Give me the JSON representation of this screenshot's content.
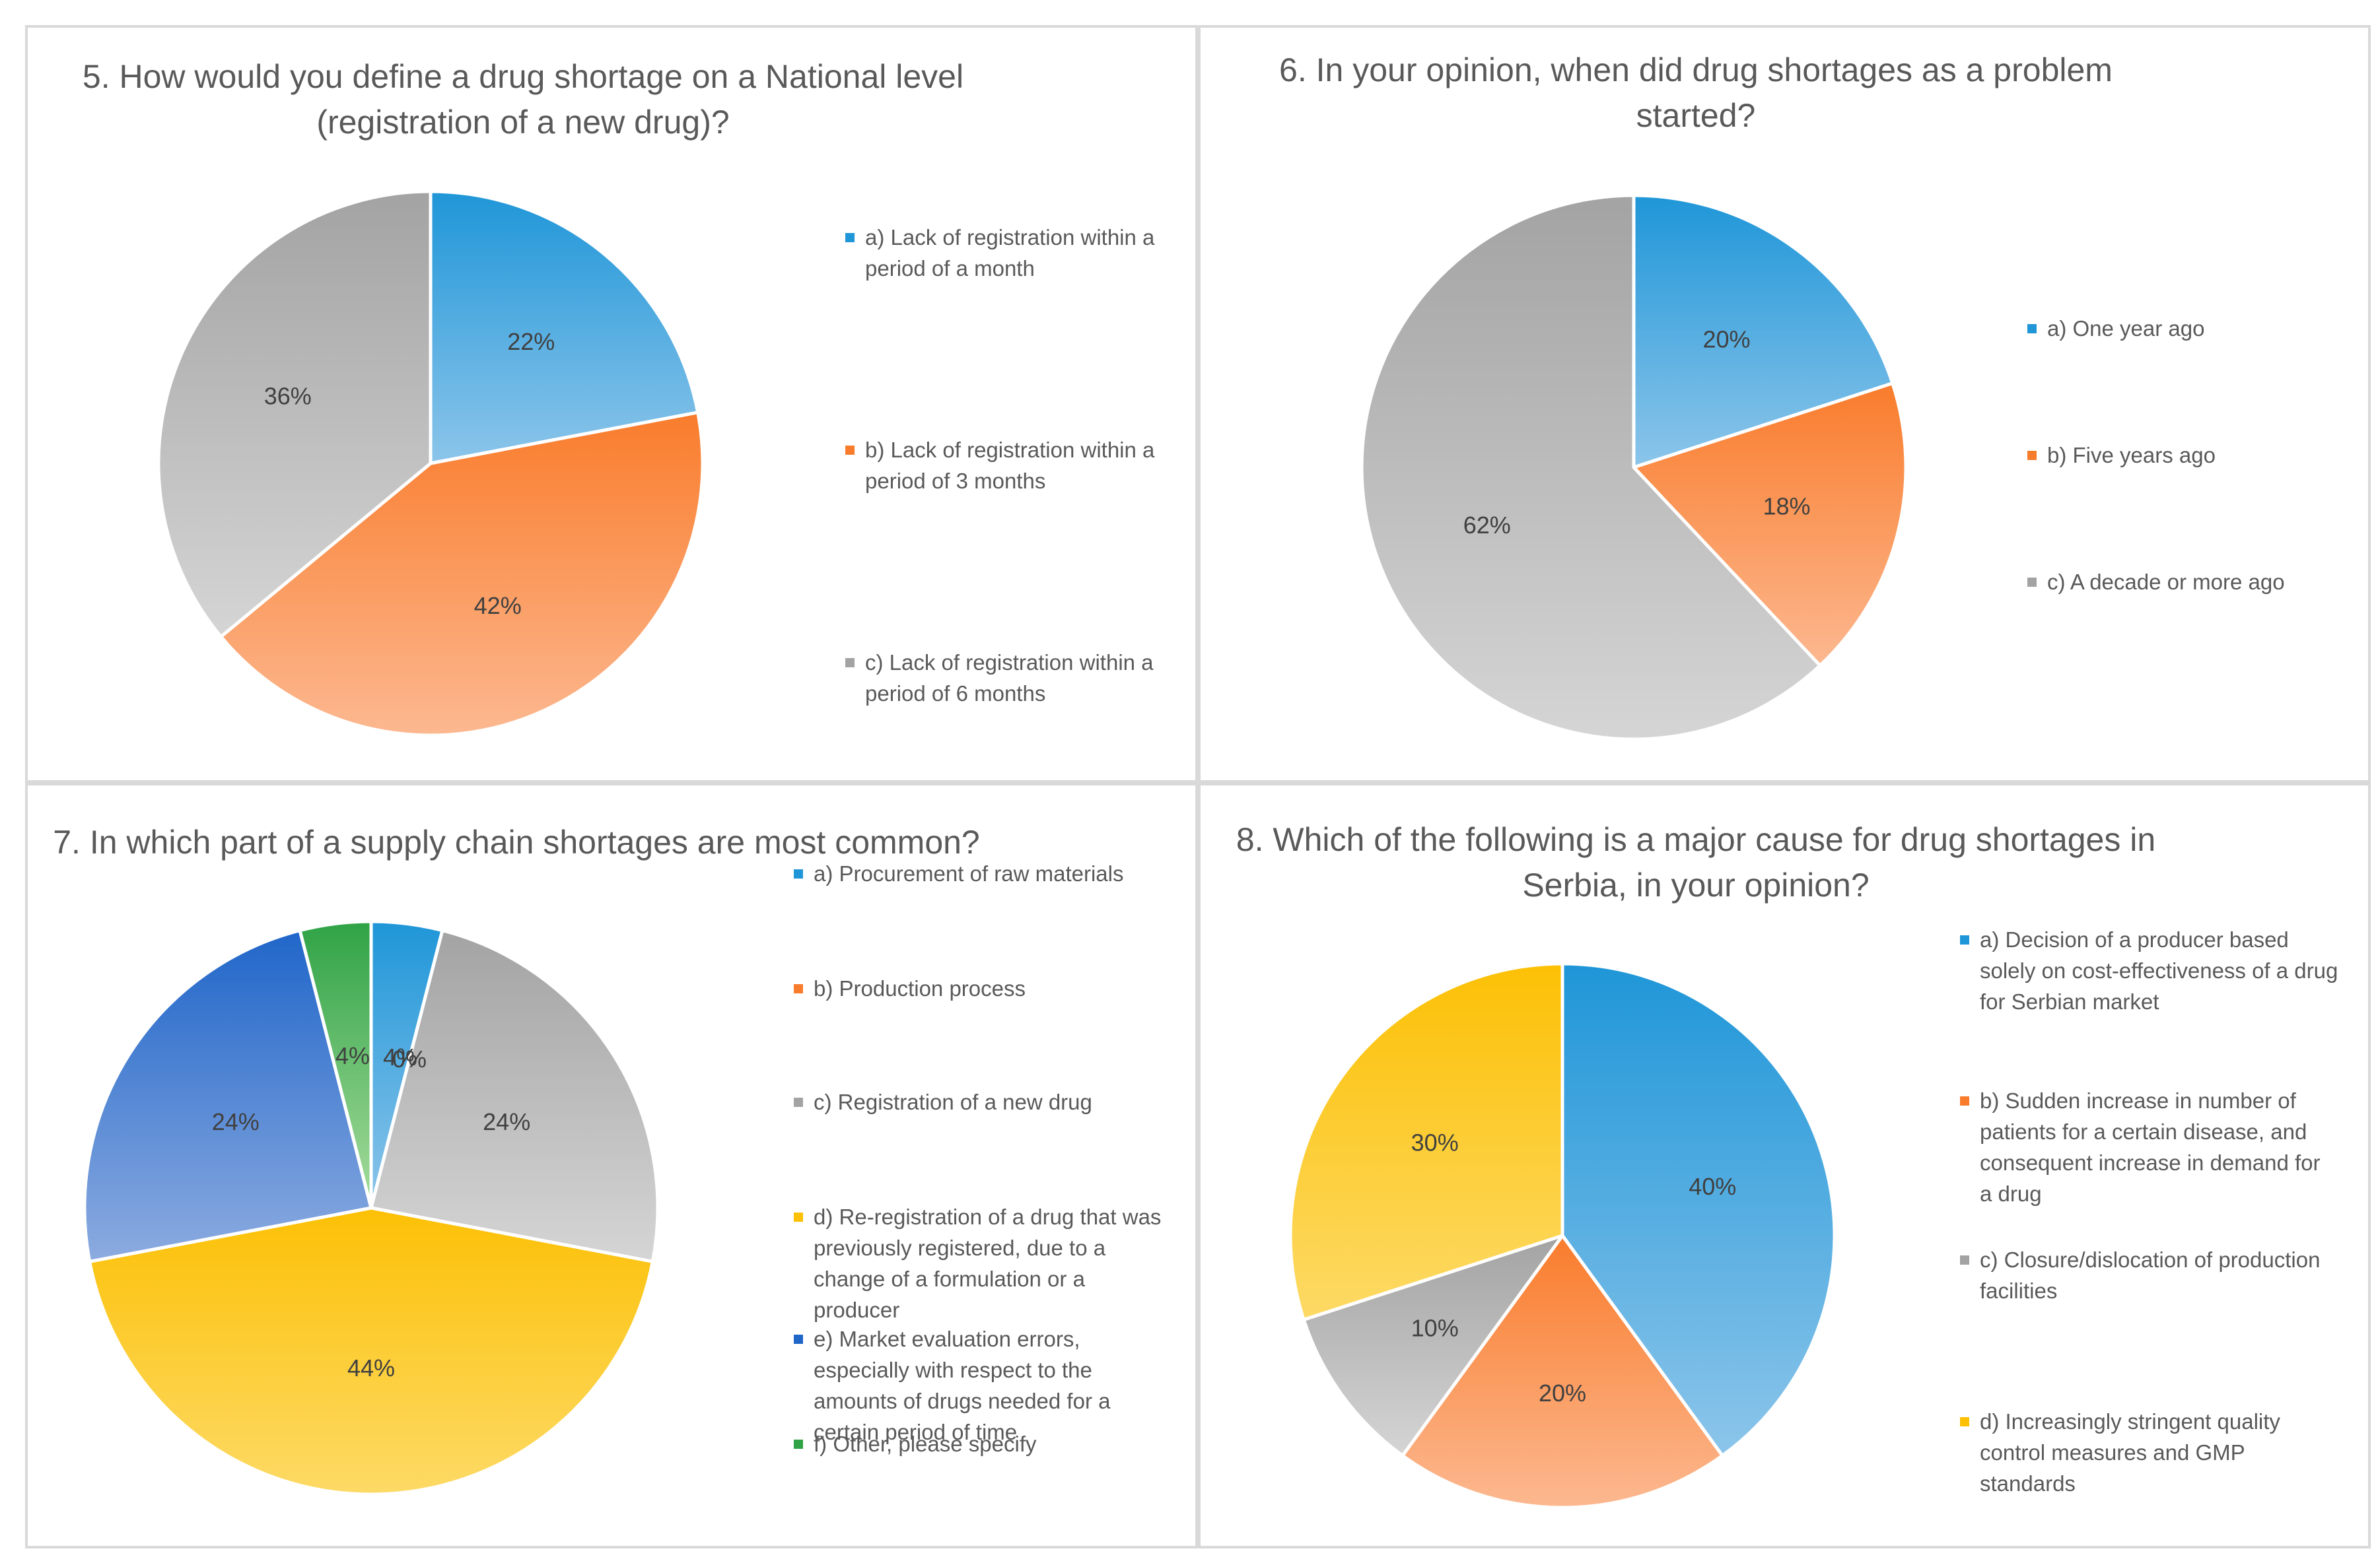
{
  "colors": {
    "blue": [
      "#1f96d8",
      "#8cc5ea"
    ],
    "orange": [
      "#f97c2c",
      "#fcb890"
    ],
    "gray": [
      "#a3a3a3",
      "#d5d5d5"
    ],
    "yellow": [
      "#fcc005",
      "#fdda66"
    ],
    "darkblue": [
      "#2066c9",
      "#8cabe0"
    ],
    "green": [
      "#30a346",
      "#a6dc9d"
    ]
  },
  "chart_data": [
    {
      "type": "pie",
      "title": "5. How would you define a drug shortage on a National level (registration of a new drug)?",
      "title_lines": [
        "5. How would you define a drug shortage on a National level",
        "(registration of a new drug)?"
      ],
      "categories": [
        "a) Lack of registration within a period of a month",
        "b) Lack of registration within a period of 3 months",
        "c) Lack of registration within a period of 6 months"
      ],
      "values": [
        22,
        42,
        36
      ],
      "labels": [
        "22%",
        "42%",
        "36%"
      ],
      "legend_lines": [
        [
          "a) Lack of registration within a",
          "period of a month"
        ],
        [
          "b) Lack of registration within a",
          "period of 3 months"
        ],
        [
          "c) Lack of registration within a",
          "period of 6 months"
        ]
      ],
      "colors": [
        "blue",
        "orange",
        "gray"
      ],
      "legend": "right"
    },
    {
      "type": "pie",
      "title": "6. In your opinion, when did drug shortages as a problem started?",
      "title_lines": [
        "6. In your opinion, when did drug shortages as a problem",
        "started?"
      ],
      "categories": [
        "a) One year ago",
        "b) Five years ago",
        "c) A decade or more ago"
      ],
      "values": [
        20,
        18,
        62
      ],
      "labels": [
        "20%",
        "18%",
        "62%"
      ],
      "legend_lines": [
        [
          "a) One year ago"
        ],
        [
          "b) Five years ago"
        ],
        [
          "c) A decade or more ago"
        ]
      ],
      "colors": [
        "blue",
        "orange",
        "gray"
      ],
      "legend": "right"
    },
    {
      "type": "pie",
      "title": "7. In which part of a supply chain shortages are most common?",
      "title_lines": [
        "7. In which part of a supply chain shortages are most common?"
      ],
      "categories": [
        "a) Procurement of raw materials",
        "b) Production process",
        "c) Registration of a new drug",
        "d) Re-registration of a drug that was previously registered, due to a change of a formulation or a producer",
        "e) Market evaluation errors, especially with respect to the amounts of drugs needed for a certain period of time",
        "f) Other, please specify"
      ],
      "values": [
        4,
        0,
        24,
        44,
        24,
        4
      ],
      "labels": [
        "4%",
        "0%",
        "24%",
        "44%",
        "24%",
        "4%"
      ],
      "legend_lines": [
        [
          "a) Procurement of raw materials"
        ],
        [
          "b) Production process"
        ],
        [
          "c) Registration of a new drug"
        ],
        [
          "d) Re-registration of a drug that was",
          "previously registered, due to a",
          "change of a formulation or a",
          "producer"
        ],
        [
          "e) Market evaluation errors,",
          "especially with respect to the",
          "amounts of drugs needed for a",
          "certain period of time"
        ],
        [
          "f) Other, please specify"
        ]
      ],
      "colors": [
        "blue",
        "orange",
        "gray",
        "yellow",
        "darkblue",
        "green"
      ],
      "legend": "right"
    },
    {
      "type": "pie",
      "title": "8. Which of the following is a major cause for drug shortages in Serbia, in your opinion?",
      "title_lines": [
        "8. Which of the following is a major cause for drug shortages in",
        "Serbia, in your opinion?"
      ],
      "categories": [
        "a) Decision of a producer based solely on cost-effectiveness of a drug for Serbian market",
        "b) Sudden increase in number of patients for a certain disease, and consequent increase in demand for a drug",
        "c) Closure/dislocation of production facilities",
        "d) Increasingly stringent quality control measures and GMP standards"
      ],
      "values": [
        40,
        20,
        10,
        30
      ],
      "labels": [
        "40%",
        "20%",
        "10%",
        "30%"
      ],
      "legend_lines": [
        [
          "a) Decision of a producer based",
          "solely on cost-effectiveness of a drug",
          "for Serbian market"
        ],
        [
          "b) Sudden increase in number of",
          "patients for a certain disease, and",
          "consequent increase in demand for",
          "a drug"
        ],
        [
          "c) Closure/dislocation of production",
          "facilities"
        ],
        [
          "d) Increasingly stringent quality",
          "control measures and GMP",
          "standards"
        ]
      ],
      "colors": [
        "blue",
        "orange",
        "gray",
        "yellow"
      ],
      "legend": "right"
    }
  ]
}
